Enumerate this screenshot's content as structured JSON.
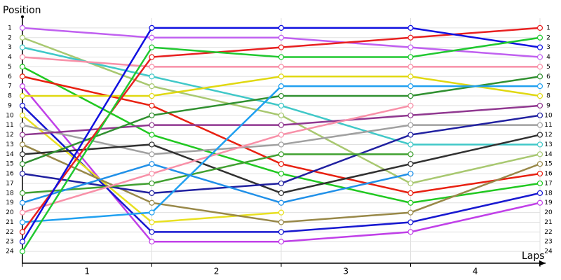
{
  "chart_data": {
    "type": "line",
    "y_label": "Position",
    "x_label": "Laps",
    "x": [
      0,
      1,
      2,
      3,
      4
    ],
    "xlim": [
      0,
      4
    ],
    "xticks": [
      {
        "value": 0.5,
        "label": "1"
      },
      {
        "value": 1.5,
        "label": "2"
      },
      {
        "value": 2.5,
        "label": "3"
      },
      {
        "value": 3.5,
        "label": "4"
      }
    ],
    "ylim": [
      25,
      0
    ],
    "yticks": [
      1,
      2,
      3,
      4,
      5,
      6,
      7,
      8,
      9,
      10,
      11,
      12,
      13,
      14,
      15,
      16,
      17,
      18,
      19,
      20,
      21,
      22,
      23,
      24
    ],
    "grid": true,
    "series": [
      {
        "color": "#c060f0",
        "values": [
          1,
          2,
          2,
          3,
          4
        ]
      },
      {
        "color": "#a8c870",
        "values": [
          2,
          7,
          10,
          17,
          14
        ]
      },
      {
        "color": "#40c8c8",
        "values": [
          3,
          6,
          9,
          13,
          13
        ]
      },
      {
        "color": "#f890a8",
        "values": [
          4,
          5,
          5,
          5,
          5
        ]
      },
      {
        "color": "#20c820",
        "values": [
          5,
          12,
          16,
          19,
          17
        ]
      },
      {
        "color": "#e82010",
        "values": [
          6,
          9,
          15,
          18,
          16
        ]
      },
      {
        "color": "#c040e8",
        "values": [
          7,
          23,
          23,
          22,
          19
        ]
      },
      {
        "color": "#e0d810",
        "values": [
          8,
          8,
          6,
          6,
          8
        ]
      },
      {
        "color": "#1818d0",
        "values": [
          9,
          22,
          22,
          21,
          18
        ]
      },
      {
        "color": "#e8e020",
        "values": [
          10,
          21,
          20,
          null,
          null
        ]
      },
      {
        "color": "#a0a0a0",
        "values": [
          11,
          14,
          13,
          11,
          11
        ]
      },
      {
        "color": "#903890",
        "values": [
          12,
          11,
          11,
          10,
          9
        ]
      },
      {
        "color": "#988848",
        "values": [
          13,
          19,
          21,
          20,
          15
        ]
      },
      {
        "color": "#303030",
        "values": [
          14,
          13,
          18,
          15,
          12
        ]
      },
      {
        "color": "#309030",
        "values": [
          15,
          10,
          8,
          8,
          6
        ]
      },
      {
        "color": "#2020a0",
        "values": [
          16,
          18,
          17,
          12,
          10
        ]
      },
      {
        "color": "#40a030",
        "values": [
          18,
          17,
          14,
          14,
          null
        ]
      },
      {
        "color": "#2090e8",
        "values": [
          19,
          15,
          19,
          16,
          null
        ]
      },
      {
        "color": "#f890a8",
        "values": [
          20,
          16,
          12,
          9,
          null
        ]
      },
      {
        "color": "#20a0f0",
        "values": [
          21,
          20,
          7,
          7,
          7
        ]
      },
      {
        "color": "#e82020",
        "values": [
          22,
          4,
          3,
          2,
          1
        ]
      },
      {
        "color": "#1010e0",
        "values": [
          23,
          1,
          1,
          1,
          3
        ]
      },
      {
        "color": "#20c830",
        "values": [
          24,
          3,
          4,
          4,
          2
        ]
      }
    ]
  }
}
